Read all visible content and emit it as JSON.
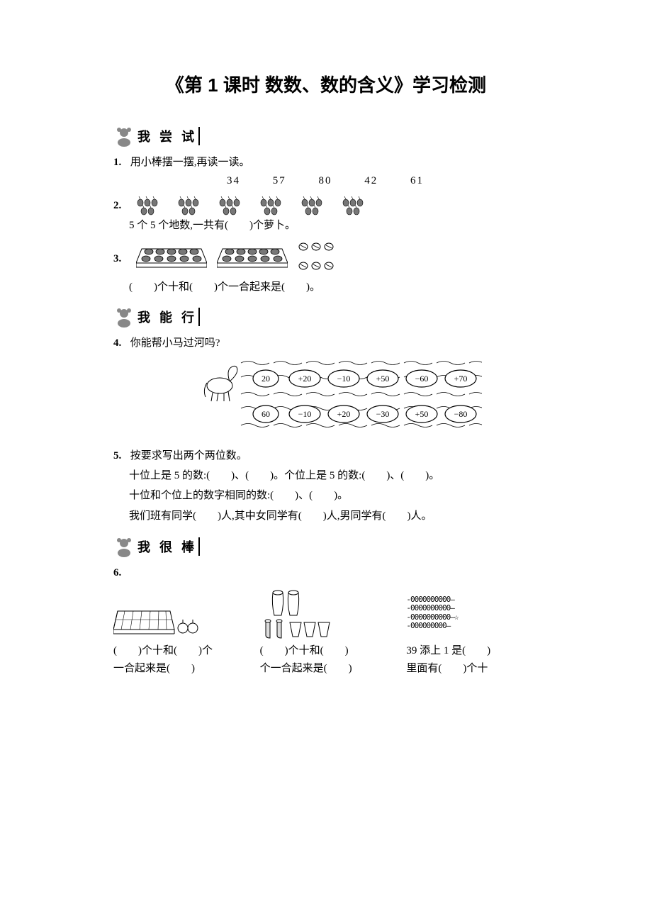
{
  "title": "《第 1 课时 数数、数的含义》学习检测",
  "sections": {
    "try": "我 尝 试",
    "can": "我 能 行",
    "great": "我 很 棒"
  },
  "q1": {
    "num": "1.",
    "text": "用小棒摆一摆,再读一读。",
    "values": [
      "34",
      "57",
      "80",
      "42",
      "61"
    ]
  },
  "q2": {
    "num": "2.",
    "line": "5 个 5 个地数,一共有(　　)个萝卜。",
    "groups": 6,
    "per_group": 5
  },
  "q3": {
    "num": "3.",
    "line": "(　　)个十和(　　)个一合起来是(　　)。",
    "trays": 2,
    "loose": 6
  },
  "q4": {
    "num": "4.",
    "text": "你能帮小马过河吗?",
    "row1_start": "20",
    "row1_ops": [
      "+20",
      "−10",
      "+50",
      "−60",
      "+70"
    ],
    "row2_start": "60",
    "row2_ops": [
      "−10",
      "+20",
      "−30",
      "+50",
      "−80"
    ]
  },
  "q5": {
    "num": "5.",
    "text": "按要求写出两个两位数。",
    "l1": "十位上是 5 的数:(　　)、(　　)。个位上是 5 的数:(　　)、(　　)。",
    "l2": "十位和个位上的数字相同的数:(　　)、(　　)。",
    "l3": "我们班有同学(　　)人,其中女同学有(　　)人,男同学有(　　)人。"
  },
  "q6": {
    "num": "6.",
    "c1l1": "(　　)个十和(　　)个",
    "c1l2": "一合起来是(　　)",
    "c2l1": "(　　)个十和(　　)",
    "c2l2": "个一合起来是(　　)",
    "c3l1": "39 添上 1 是(　　)",
    "c3l2": "里面有(　　)个十",
    "abacus_rows": [
      "-0000000000—",
      "-0000000000—",
      "-0000000000—☆",
      "-000000000—"
    ]
  },
  "colors": {
    "text": "#000000",
    "bg": "#ffffff",
    "stroke": "#000000",
    "fill_gray": "#888888"
  }
}
